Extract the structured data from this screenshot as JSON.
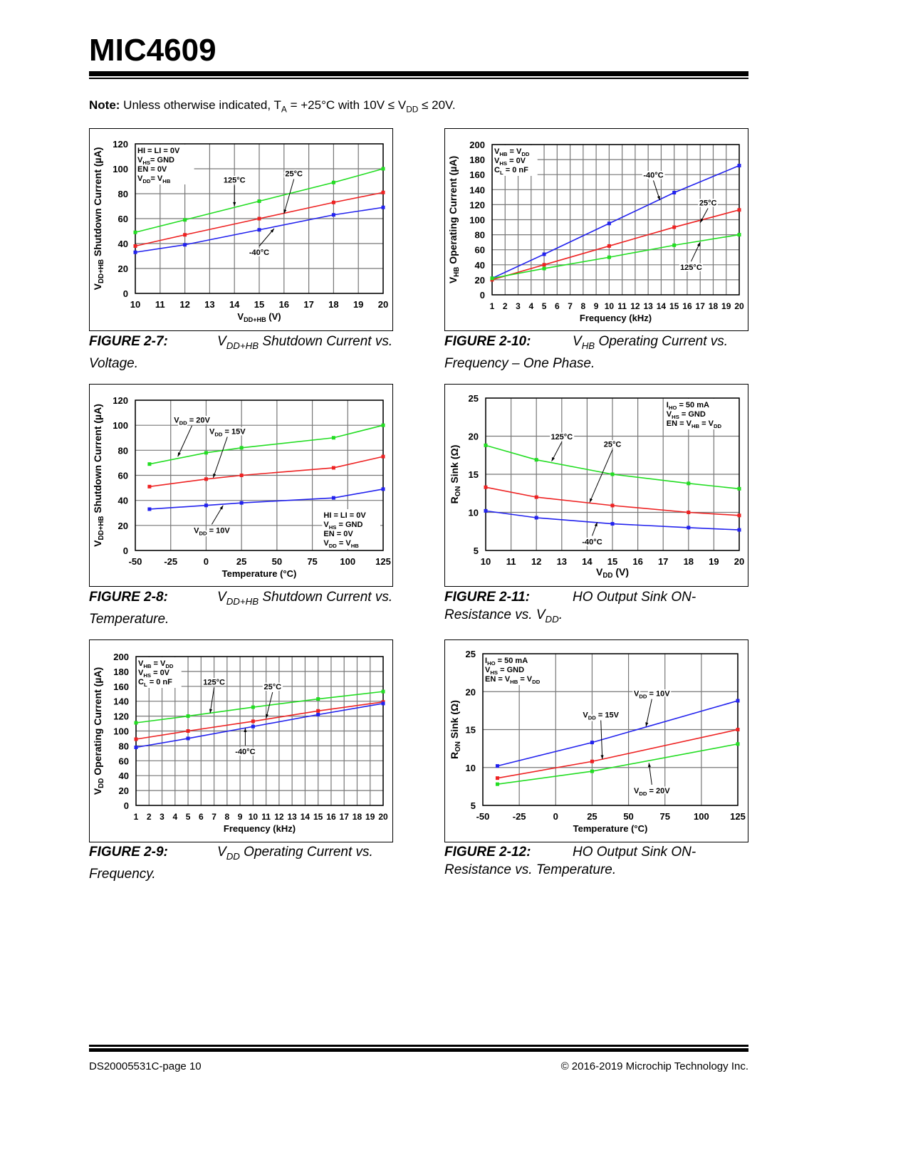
{
  "header": {
    "title": "MIC4609"
  },
  "note": {
    "label": "Note:",
    "pre": " Unless otherwise indicated, T",
    "sub1": "A",
    "mid": " = +25°C with 10V ≤ V",
    "sub2": "DD",
    "post": " ≤ 20V."
  },
  "captions": [
    {
      "num": "FIGURE 2-7:",
      "pre": "V",
      "sub": "DD+HB",
      "post": " Shutdown Current vs. Voltage."
    },
    {
      "num": "FIGURE 2-10:",
      "pre": "V",
      "sub": "HB",
      "post": " Operating Current vs. Frequency – One Phase."
    },
    {
      "num": "FIGURE 2-8:",
      "pre": "V",
      "sub": "DD+HB",
      "post": " Shutdown Current vs. Temperature."
    },
    {
      "num": "FIGURE 2-11:",
      "pre": "HO Output Sink ON-Resistance vs. V",
      "sub": "DD",
      "post": "."
    },
    {
      "num": "FIGURE 2-9:",
      "pre": "V",
      "sub": "DD",
      "post": " Operating Current vs. Frequency."
    },
    {
      "num": "FIGURE 2-12:",
      "pre": "HO Output Sink ON-Resistance vs. Temperature.",
      "sub": "",
      "post": ""
    }
  ],
  "footer": {
    "left": "DS20005531C-page 10",
    "right": "© 2016-2019 Microchip Technology Inc."
  },
  "chart_data": [
    {
      "type": "line",
      "id": "fig-2-7",
      "ylabel": "V_{DD+HB} Shutdown Current (µA)",
      "xlabel": "V_{DD+HB} (V)",
      "xlim": [
        10,
        20
      ],
      "ylim": [
        0,
        120
      ],
      "xticks": [
        10,
        11,
        12,
        13,
        14,
        15,
        16,
        17,
        18,
        19,
        20
      ],
      "yticks": [
        0,
        20,
        40,
        60,
        80,
        100,
        120
      ],
      "grid": true,
      "conditions": [
        "HI = LI = 0V",
        "V_{HS}= GND",
        "EN = 0V",
        "V_{DD}= V_{HB}"
      ],
      "conditions_pos": "top-left",
      "series": [
        {
          "name": "125°C",
          "color": "#22dd22",
          "x": [
            10,
            12,
            15,
            18,
            20
          ],
          "y": [
            49,
            59,
            74,
            89,
            100
          ]
        },
        {
          "name": "25°C",
          "color": "#ee2222",
          "x": [
            10,
            12,
            15,
            18,
            20
          ],
          "y": [
            38,
            47,
            60,
            73,
            81
          ]
        },
        {
          "name": "-40°C",
          "color": "#2222ee",
          "x": [
            10,
            12,
            15,
            18,
            20
          ],
          "y": [
            33,
            39,
            51,
            63,
            69
          ]
        }
      ],
      "annotations": [
        {
          "text": "125°C",
          "x": 14,
          "y": 89,
          "to": [
            14,
            70
          ]
        },
        {
          "text": "25°C",
          "x": 16.4,
          "y": 94,
          "to": [
            16,
            64
          ]
        },
        {
          "text": "-40°C",
          "x": 15,
          "y": 31,
          "to": [
            15.6,
            52
          ]
        }
      ]
    },
    {
      "type": "line",
      "id": "fig-2-10",
      "ylabel": "V_{HB} Operating Current (µA)",
      "xlabel": "Frequency (kHz)",
      "xlim": [
        1,
        20
      ],
      "ylim": [
        0,
        200
      ],
      "xticks": [
        1,
        2,
        3,
        4,
        5,
        6,
        7,
        8,
        9,
        10,
        11,
        12,
        13,
        14,
        15,
        16,
        17,
        18,
        19,
        20
      ],
      "yticks": [
        0,
        20,
        40,
        60,
        80,
        100,
        120,
        140,
        160,
        180,
        200
      ],
      "grid": true,
      "conditions": [
        "V_{HB} = V_{DD}",
        "V_{HS} = 0V",
        "C_{L} = 0 nF"
      ],
      "conditions_pos": "top-left",
      "series": [
        {
          "name": "-40°C",
          "color": "#2222ee",
          "x": [
            1,
            5,
            10,
            15,
            20
          ],
          "y": [
            22,
            54,
            95,
            136,
            172
          ]
        },
        {
          "name": "25°C",
          "color": "#ee2222",
          "x": [
            1,
            5,
            10,
            15,
            20
          ],
          "y": [
            20,
            40,
            65,
            90,
            113
          ]
        },
        {
          "name": "125°C",
          "color": "#22dd22",
          "x": [
            1,
            5,
            10,
            15,
            20
          ],
          "y": [
            22,
            35,
            50,
            66,
            80
          ]
        }
      ],
      "annotations": [
        {
          "text": "-40°C",
          "x": 13.4,
          "y": 156,
          "to": [
            13.9,
            126
          ]
        },
        {
          "text": "25°C",
          "x": 17.6,
          "y": 119,
          "to": [
            17,
            96
          ]
        },
        {
          "text": "125°C",
          "x": 16.3,
          "y": 33,
          "to": [
            17,
            70
          ]
        }
      ]
    },
    {
      "type": "line",
      "id": "fig-2-8",
      "ylabel": "V_{DD+HB} Shutdown Current (µA)",
      "xlabel": "Temperature (°C)",
      "xlim": [
        -50,
        125
      ],
      "ylim": [
        0,
        120
      ],
      "xticks": [
        -50,
        -25,
        0,
        25,
        50,
        75,
        100,
        125
      ],
      "yticks": [
        0,
        20,
        40,
        60,
        80,
        100,
        120
      ],
      "grid": true,
      "conditions": [
        "HI = LI = 0V",
        "V_{HS} = GND",
        "EN = 0V",
        "V_{DD} = V_{HB}"
      ],
      "conditions_pos": "bottom-right",
      "series": [
        {
          "name": "V_{DD} = 20V",
          "color": "#22dd22",
          "x": [
            -40,
            0,
            25,
            90,
            125
          ],
          "y": [
            69,
            78,
            82,
            90,
            100
          ]
        },
        {
          "name": "V_{DD} = 15V",
          "color": "#ee2222",
          "x": [
            -40,
            0,
            25,
            90,
            125
          ],
          "y": [
            51,
            57,
            60,
            66,
            75
          ]
        },
        {
          "name": "V_{DD} = 10V",
          "color": "#2222ee",
          "x": [
            -40,
            0,
            25,
            90,
            125
          ],
          "y": [
            33,
            36,
            38,
            42,
            49
          ]
        }
      ],
      "annotations": [
        {
          "text": "V_{DD} = 20V",
          "x": -10,
          "y": 102,
          "to": [
            -20,
            75
          ]
        },
        {
          "text": "V_{DD} = 15V",
          "x": 15,
          "y": 93,
          "to": [
            5,
            58
          ]
        },
        {
          "text": "V_{DD} = 10V",
          "x": 4,
          "y": 14,
          "to": [
            12,
            36
          ]
        }
      ]
    },
    {
      "type": "line",
      "id": "fig-2-11",
      "ylabel": "R_{ON} Sink (Ω)",
      "xlabel": "V_{DD} (V)",
      "xlim": [
        10,
        20
      ],
      "ylim": [
        5,
        25
      ],
      "xticks": [
        10,
        11,
        12,
        13,
        14,
        15,
        16,
        17,
        18,
        19,
        20
      ],
      "yticks": [
        5,
        10,
        15,
        20,
        25
      ],
      "grid": true,
      "conditions": [
        "I_{HO} = 50 mA",
        "V_{HS} = GND",
        "EN = V_{HB} = V_{DD}"
      ],
      "conditions_pos": "top-right",
      "series": [
        {
          "name": "125°C",
          "color": "#22dd22",
          "x": [
            10,
            12,
            15,
            18,
            20
          ],
          "y": [
            18.8,
            16.9,
            15.0,
            13.8,
            13.1
          ]
        },
        {
          "name": "25°C",
          "color": "#ee2222",
          "x": [
            10,
            12,
            15,
            18,
            20
          ],
          "y": [
            13.3,
            12.0,
            10.9,
            10.0,
            9.6
          ]
        },
        {
          "name": "-40°C",
          "color": "#2222ee",
          "x": [
            10,
            12,
            15,
            18,
            20
          ],
          "y": [
            10.2,
            9.3,
            8.5,
            8.0,
            7.7
          ]
        }
      ],
      "annotations": [
        {
          "text": "125°C",
          "x": 13,
          "y": 19.6,
          "to": [
            12.6,
            16.7
          ]
        },
        {
          "text": "25°C",
          "x": 15,
          "y": 18.6,
          "to": [
            14.1,
            11.3
          ]
        },
        {
          "text": "-40°C",
          "x": 14.2,
          "y": 5.8,
          "to": [
            14.4,
            8.7
          ]
        }
      ]
    },
    {
      "type": "line",
      "id": "fig-2-9",
      "ylabel": "V_{DD} Operating Current (µA)",
      "xlabel": "Frequency (kHz)",
      "xlim": [
        1,
        20
      ],
      "ylim": [
        0,
        200
      ],
      "xticks": [
        1,
        2,
        3,
        4,
        5,
        6,
        7,
        8,
        9,
        10,
        11,
        12,
        13,
        14,
        15,
        16,
        17,
        18,
        19,
        20
      ],
      "yticks": [
        0,
        20,
        40,
        60,
        80,
        100,
        120,
        140,
        160,
        180,
        200
      ],
      "grid": true,
      "conditions": [
        "V_{HB} = V_{DD}",
        "V_{HS} = 0V",
        "C_{L} = 0 nF"
      ],
      "conditions_pos": "top-left",
      "series": [
        {
          "name": "125°C",
          "color": "#22dd22",
          "x": [
            1,
            5,
            10,
            15,
            20
          ],
          "y": [
            111,
            120,
            132,
            143,
            153
          ]
        },
        {
          "name": "25°C",
          "color": "#ee2222",
          "x": [
            1,
            5,
            10,
            15,
            20
          ],
          "y": [
            89,
            100,
            113,
            127,
            139
          ]
        },
        {
          "name": "-40°C",
          "color": "#2222ee",
          "x": [
            1,
            5,
            10,
            15,
            20
          ],
          "y": [
            78,
            90,
            106,
            122,
            137
          ]
        }
      ],
      "annotations": [
        {
          "text": "125°C",
          "x": 7,
          "y": 162,
          "to": [
            6.7,
            124
          ]
        },
        {
          "text": "25°C",
          "x": 11.5,
          "y": 156,
          "to": [
            11,
            117
          ]
        },
        {
          "text": "-40°C",
          "x": 9.4,
          "y": 69,
          "to": [
            9.4,
            104
          ]
        }
      ]
    },
    {
      "type": "line",
      "id": "fig-2-12",
      "ylabel": "R_{ON} Sink (Ω)",
      "xlabel": "Temperature (°C)",
      "xlim": [
        -50,
        125
      ],
      "ylim": [
        5,
        25
      ],
      "xticks": [
        -50,
        -25,
        0,
        25,
        50,
        75,
        100,
        125
      ],
      "yticks": [
        5,
        10,
        15,
        20,
        25
      ],
      "grid": true,
      "conditions": [
        "I_{HO} = 50 mA",
        "V_{HS} = GND",
        "EN = V_{HB} = V_{DD}"
      ],
      "conditions_pos": "top-left",
      "series": [
        {
          "name": "V_{DD} = 10V",
          "color": "#2222ee",
          "x": [
            -40,
            25,
            125
          ],
          "y": [
            10.2,
            13.3,
            18.8
          ]
        },
        {
          "name": "V_{DD} = 15V",
          "color": "#ee2222",
          "x": [
            -40,
            25,
            125
          ],
          "y": [
            8.6,
            10.8,
            15.0
          ]
        },
        {
          "name": "V_{DD} = 20V",
          "color": "#22dd22",
          "x": [
            -40,
            25,
            125
          ],
          "y": [
            7.8,
            9.5,
            13.1
          ]
        }
      ],
      "annotations": [
        {
          "text": "V_{DD} = 10V",
          "x": 66,
          "y": 19.4,
          "to": [
            62,
            15.4
          ]
        },
        {
          "text": "V_{DD} = 15V",
          "x": 31,
          "y": 16.6,
          "to": [
            32,
            11.1
          ]
        },
        {
          "text": "V_{DD} = 20V",
          "x": 66,
          "y": 6.6,
          "to": [
            64,
            10.6
          ]
        }
      ]
    }
  ]
}
